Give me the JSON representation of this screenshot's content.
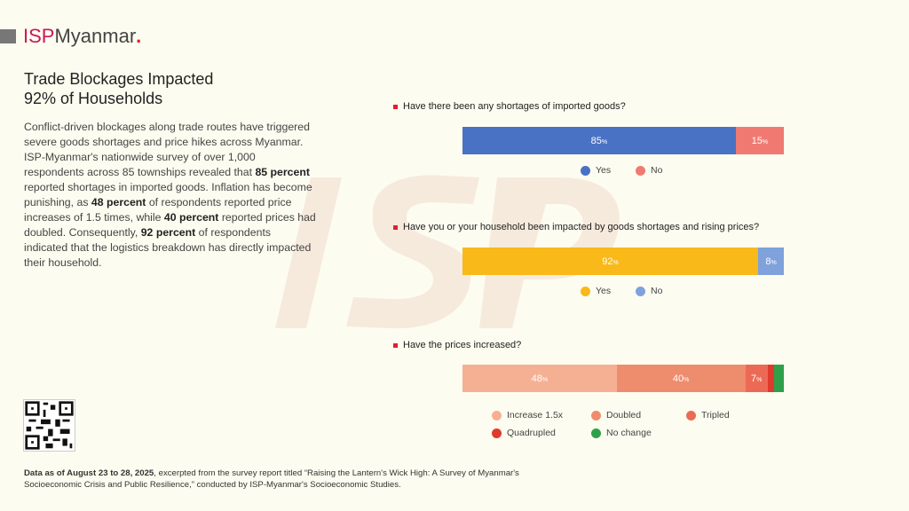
{
  "logo": {
    "isp": "ISP",
    "name": "Myanmar",
    "dot": "."
  },
  "watermark": "ISP",
  "title_l1": "Trade Blockages Impacted",
  "title_l2": "92% of Households",
  "body": {
    "p1": "Conflict-driven blockages along trade routes have triggered severe goods shortages and price hikes across Myanmar.  ISP-Myanmar's nationwide survey of over 1,000 respondents across 85 townships revealed that ",
    "b1": "85 percent",
    "p2": " reported shortages in imported goods. Inflation has become punishing, as ",
    "b2": "48 percent",
    "p3": " of respondents reported price increases of 1.5 times, while ",
    "b3": "40 percent",
    "p4": " reported prices had doubled. Consequently, ",
    "b4": "92 percent",
    "p5": " of respondents indicated that the logistics breakdown has directly impacted their household."
  },
  "footer": {
    "bold": "Data as of August 23 to 28, 2025",
    "text": ", excerpted from the survey report titled “Raising the Lantern's Wick High: A Survey of Myanmar's Socioeconomic Crisis and Public Resilience,” conducted by ISP-Myanmar's Socioeconomic Studies."
  },
  "chart_data": [
    {
      "type": "bar",
      "stacked": true,
      "title": "Have there been any shortages of imported goods?",
      "series": [
        {
          "name": "Yes",
          "value": 85,
          "label": "85",
          "color": "#4a72c4"
        },
        {
          "name": "No",
          "value": 15,
          "label": "15",
          "color": "#f07a72"
        }
      ],
      "unit": "%"
    },
    {
      "type": "bar",
      "stacked": true,
      "title": "Have you or your household been impacted by goods shortages and rising prices?",
      "series": [
        {
          "name": "Yes",
          "value": 92,
          "label": "92",
          "color": "#f8b919"
        },
        {
          "name": "No",
          "value": 8,
          "label": "8",
          "color": "#7fa2dd"
        }
      ],
      "unit": "%"
    },
    {
      "type": "bar",
      "stacked": true,
      "title": "Have the prices increased?",
      "series": [
        {
          "name": "Increase 1.5x",
          "value": 48,
          "label": "48",
          "color": "#f5b094"
        },
        {
          "name": "Doubled",
          "value": 40,
          "label": "40",
          "color": "#ee8c6e"
        },
        {
          "name": "Tripled",
          "value": 7,
          "label": "7",
          "color": "#ec6a55"
        },
        {
          "name": "Quadrupled",
          "value": 2,
          "label": "",
          "color": "#e03a2c"
        },
        {
          "name": "No change",
          "value": 3,
          "label": "",
          "color": "#2fa04a"
        }
      ],
      "unit": "%"
    }
  ]
}
